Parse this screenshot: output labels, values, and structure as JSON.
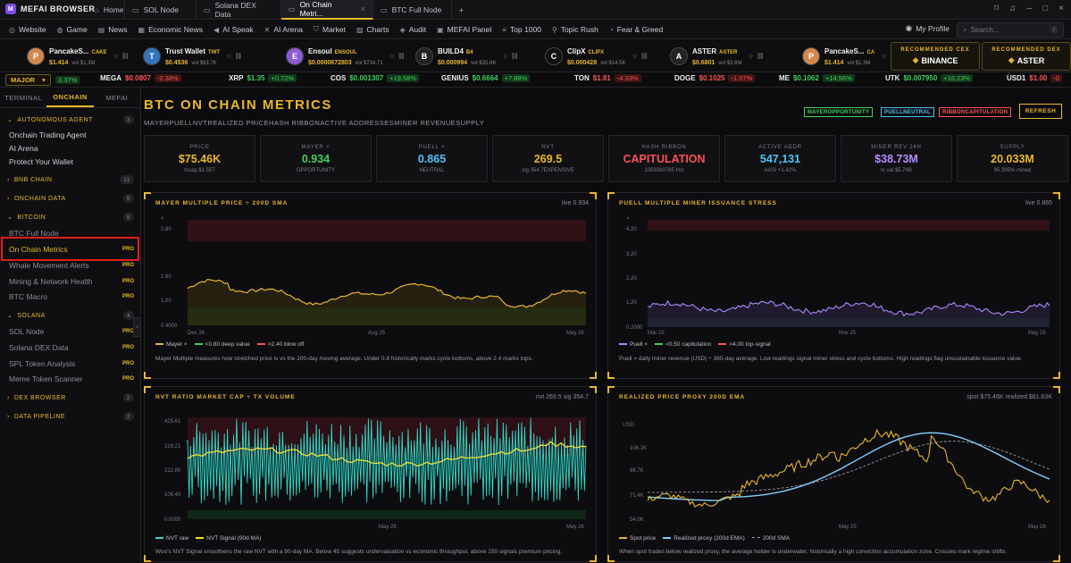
{
  "browser": {
    "brand": "MEFAI BROWSER",
    "tabs": [
      {
        "label": "Home"
      },
      {
        "label": "SOL Node"
      },
      {
        "label": "Solana DEX Data"
      },
      {
        "label": "On Chain Metri..."
      },
      {
        "label": "BTC Full Node"
      }
    ]
  },
  "nav": {
    "items": [
      {
        "label": "Website"
      },
      {
        "label": "Game"
      },
      {
        "label": "News"
      },
      {
        "label": "Economic News"
      },
      {
        "label": "AI Speak"
      },
      {
        "label": "AI Arena"
      },
      {
        "label": "Market"
      },
      {
        "label": "Charts"
      },
      {
        "label": "Audit"
      },
      {
        "label": "MEFAI Panel"
      },
      {
        "label": "Top 1000"
      },
      {
        "label": "Topic Rush"
      },
      {
        "label": "Fear & Greed"
      }
    ],
    "profile": "My Profile",
    "search_placeholder": "Search...",
    "search_kbd": "/"
  },
  "tokens": [
    {
      "name": "PancakeS...",
      "sym": "CAKE",
      "price": "$1.414",
      "vol": "vol $1.3M",
      "color": "#d1884f"
    },
    {
      "name": "Trust Wallet",
      "sym": "TWT",
      "price": "$0.4536",
      "vol": "vol $93.7K",
      "color": "#3375bb"
    },
    {
      "name": "Ensoul",
      "sym": "ENSOUL",
      "price": "$0.0000672803",
      "vol": "vol $734.71",
      "color": "#8d5bd6"
    },
    {
      "name": "BUILD4",
      "sym": "B4",
      "price": "$0.000994",
      "vol": "vol $35.6K",
      "color": "#222"
    },
    {
      "name": "ClipX",
      "sym": "CLIPX",
      "price": "$0.000428",
      "vol": "vol $14.5K",
      "color": "#111"
    },
    {
      "name": "ASTER",
      "sym": "ASTER",
      "price": "$0.6801",
      "vol": "vol $3.6M",
      "color": "#222"
    },
    {
      "name": "PancakeS...",
      "sym": "CA",
      "price": "$1.414",
      "vol": "vol $1.3M",
      "color": "#d1884f"
    }
  ],
  "recommended": [
    {
      "title": "RECOMMENDED CEX",
      "value": "BINANCE"
    },
    {
      "title": "RECOMMENDED DEX",
      "value": "ASTER"
    }
  ],
  "ticker": {
    "label": "MAJOR",
    "first_change": "3.37%",
    "items": [
      {
        "sym": "MEGA",
        "price": "$0.0807",
        "chg": "-2.38%",
        "dir": "neg"
      },
      {
        "sym": "XRP",
        "price": "$1.35",
        "chg": "+0.72%",
        "dir": "pos"
      },
      {
        "sym": "COS",
        "price": "$0.001307",
        "chg": "+19.58%",
        "dir": "pos"
      },
      {
        "sym": "GENIUS",
        "price": "$0.6664",
        "chg": "+7.88%",
        "dir": "pos"
      },
      {
        "sym": "TON",
        "price": "$1.81",
        "chg": "-4.33%",
        "dir": "neg"
      },
      {
        "sym": "DOGE",
        "price": "$0.1025",
        "chg": "-1.07%",
        "dir": "neg"
      },
      {
        "sym": "ME",
        "price": "$0.1062",
        "chg": "+14.56%",
        "dir": "pos"
      },
      {
        "sym": "UTK",
        "price": "$0.007950",
        "chg": "+16.23%",
        "dir": "pos"
      },
      {
        "sym": "USD1",
        "price": "$1.00",
        "chg": "-0",
        "dir": "neg"
      }
    ]
  },
  "sidebar": {
    "tabs": [
      "TERMINAL",
      "ONCHAIN",
      "MEFAI"
    ],
    "sections": {
      "autonomous": {
        "label": "AUTONOMOUS AGENT",
        "count": "3"
      },
      "bnb": {
        "label": "BNB CHAIN",
        "count": "11"
      },
      "onchain": {
        "label": "ONCHAIN DATA",
        "count": "5"
      },
      "bitcoin": {
        "label": "BITCOIN",
        "count": "5"
      },
      "solana": {
        "label": "SOLANA",
        "count": "4"
      },
      "dex": {
        "label": "DEX BROWSER",
        "count": "2"
      },
      "pipeline": {
        "label": "DATA PIPELINE",
        "count": "2"
      }
    },
    "agent_items": [
      "Onchain Trading Agent",
      "AI Arena",
      "Protect Your Wallet"
    ],
    "bitcoin_items": [
      "BTC Full Node",
      "On Chain Metrics",
      "Whale Movement Alerts",
      "Mining & Network Health",
      "BTC Macro"
    ],
    "solana_items": [
      "SOL Node",
      "Solana DEX Data",
      "SPL Token Analysis",
      "Meme Token Scanner"
    ],
    "pro": "PRO"
  },
  "page": {
    "title": "BTC ON CHAIN METRICS",
    "subtitle": "MAYERPUELLNVTREALIZED PRICEHASH RIBBONACTIVE ADDRESSESMINER REVENUESUPPLY",
    "badges": [
      {
        "label": "MAYEROPPORTUNITY",
        "color": "#3fd15a"
      },
      {
        "label": "PUELLNEUTRAL",
        "color": "#4fc3f7"
      },
      {
        "label": "RIBBONCAPITULATION",
        "color": "#ff5454"
      }
    ],
    "refresh": "REFRESH"
  },
  "metrics": [
    {
      "label": "PRICE",
      "value": "$75.46K",
      "sub": "mcap $1.55T",
      "color": "#e9b72b"
    },
    {
      "label": "MAYER ×",
      "value": "0.934",
      "sub": "OPPORTUNITY",
      "color": "#3fd15a"
    },
    {
      "label": "PUELL ×",
      "value": "0.865",
      "sub": "NEUTRAL",
      "color": "#4fc3f7"
    },
    {
      "label": "NVT",
      "value": "269.5",
      "sub": "sig 354.7EXPENSIVE",
      "color": "#e9b72b"
    },
    {
      "label": "HASH RIBBON",
      "value": "CAPITULATION",
      "sub": "1059360795 H/s",
      "color": "#ff4d5a"
    },
    {
      "label": "ACTIVE ADDR",
      "value": "547,131",
      "sub": "AASI +1.42%",
      "color": "#4fc3f7"
    },
    {
      "label": "MINER REV 24H",
      "value": "$38.73M",
      "sub": "tx val $5.74B",
      "color": "#b48cff"
    },
    {
      "label": "SUPPLY",
      "value": "20.033M",
      "sub": "95.395% mined",
      "color": "#e9b72b"
    }
  ],
  "panels": {
    "mayer": {
      "title": "MAYER MULTIPLE PRICE ÷ 200D SMA",
      "right": "live 0.934",
      "y_unit": "×",
      "y_ticks": [
        "2.80",
        "1.60",
        "1.00",
        "0.4000"
      ],
      "x_ticks": [
        "Dec 24",
        "Aug 25",
        "May 26"
      ],
      "legend": [
        "Mayer ×",
        "<0.80 deep value",
        ">2.40 blow off"
      ],
      "desc": "Mayer Multiple measures how stretched price is vs the 200-day moving average. Under 0.8 historically marks cycle bottoms, above 2.4 marks tops."
    },
    "puell": {
      "title": "PUELL MULTIPLE MINER ISSUANCE STRESS",
      "right": "live 0.865",
      "y_unit": "×",
      "y_ticks": [
        "4.20",
        "3.20",
        "2.20",
        "1.20",
        "0.2000"
      ],
      "x_ticks": [
        "Mar 25",
        "Nov 25",
        "May 26"
      ],
      "legend": [
        "Puell ×",
        "<0.50 capitulation",
        ">4.00 top-signal"
      ],
      "desc": "Puell = daily miner revenue (USD) ÷ 365-day average. Low readings signal miner stress and cycle bottoms. High readings flag unsustainable issuance value."
    },
    "nvt": {
      "title": "NVT RATIO MARKET CAP ÷ TX VOLUME",
      "right": "nvt 269.5  sig 354.7",
      "y_ticks": [
        "425.61",
        "319.21",
        "212.80",
        "106.40",
        "0.0000"
      ],
      "x_ticks": [
        "May 25",
        "May 26"
      ],
      "legend": [
        "NVT raw",
        "NVT Signal (90d MA)"
      ],
      "desc": "Woo's NVT Signal smoothens the raw NVT with a 90-day MA. Below 45 suggests undervaluation vs economic throughput, above 150 signals premium pricing."
    },
    "realized": {
      "title": "REALIZED PRICE PROXY 200D EMA",
      "right": "spot $75.46K  realized $81.63K",
      "y_unit": "USD",
      "y_ticks": [
        "106.1K",
        "88.7K",
        "71.4K",
        "54.0K"
      ],
      "x_ticks": [
        "May 25",
        "May 26"
      ],
      "legend": [
        "Spot price",
        "Realized proxy (200d EMA)",
        "200d SMA"
      ],
      "desc": "When spot trades below realized proxy, the average holder is underwater, historically a high conviction accumulation zone. Crosses mark regime shifts."
    }
  },
  "colors": {
    "accent": "#e9b72b",
    "green": "#3fd15a",
    "red": "#ff5454",
    "cyan": "#4fc3f7",
    "purple": "#a98bff"
  }
}
